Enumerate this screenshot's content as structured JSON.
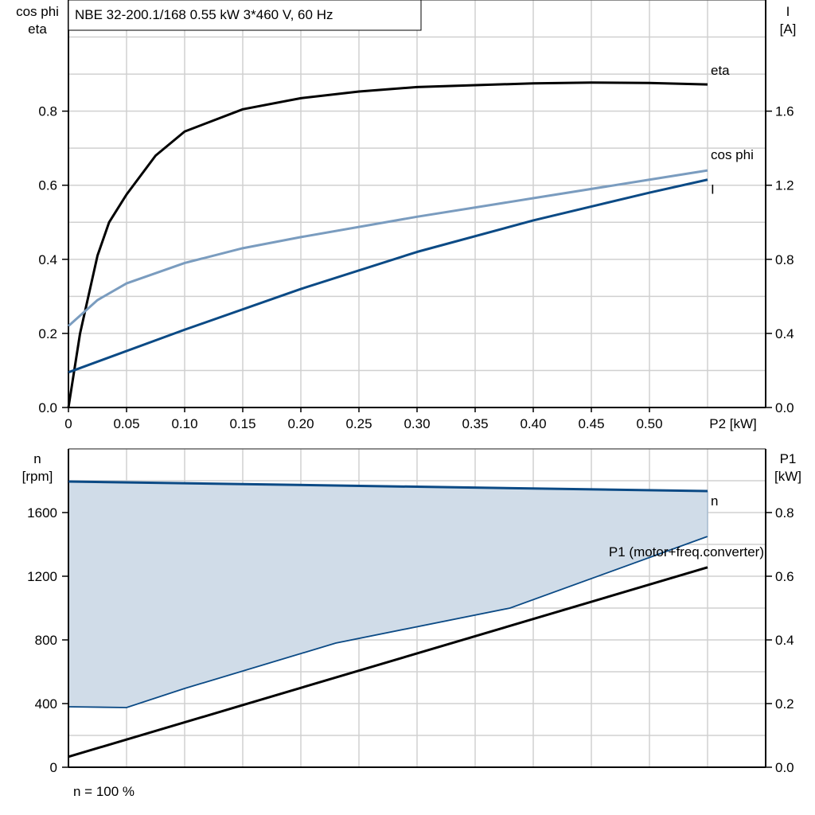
{
  "chart_data": [
    {
      "type": "line",
      "title": "NBE 32-200.1/168   0.55 kW   3*460 V, 60 Hz",
      "xlabel": "P2 [kW]",
      "ylabel": [
        "cos phi",
        "eta"
      ],
      "ylabel_right": [
        "I",
        "[A]"
      ],
      "xlim": [
        0,
        0.6
      ],
      "ylim": [
        0,
        1.1
      ],
      "ylim_right": [
        0,
        2.2
      ],
      "x_ticks": [
        "0",
        "0.05",
        "0.10",
        "0.15",
        "0.20",
        "0.25",
        "0.30",
        "0.35",
        "0.40",
        "0.45",
        "0.50"
      ],
      "y_ticks": [
        "0.0",
        "0.2",
        "0.4",
        "0.6",
        "0.8"
      ],
      "y_ticks_right": [
        "0.0",
        "0.4",
        "0.8",
        "1.2",
        "1.6"
      ],
      "grid": true,
      "series": [
        {
          "name": "eta",
          "axis": "left",
          "color": "#000000",
          "x": [
            0,
            0.01,
            0.025,
            0.035,
            0.05,
            0.075,
            0.1,
            0.15,
            0.2,
            0.25,
            0.3,
            0.4,
            0.45,
            0.5,
            0.55
          ],
          "y": [
            0,
            0.2,
            0.41,
            0.5,
            0.575,
            0.68,
            0.745,
            0.805,
            0.835,
            0.853,
            0.865,
            0.875,
            0.877,
            0.876,
            0.872
          ]
        },
        {
          "name": "cos phi",
          "axis": "left",
          "color": "#7a9cbf",
          "x": [
            0,
            0.025,
            0.05,
            0.1,
            0.15,
            0.2,
            0.3,
            0.4,
            0.5,
            0.55
          ],
          "y": [
            0.22,
            0.29,
            0.335,
            0.39,
            0.43,
            0.46,
            0.515,
            0.565,
            0.615,
            0.64
          ]
        },
        {
          "name": "I",
          "axis": "right",
          "color": "#0b4a85",
          "x": [
            0,
            0.1,
            0.2,
            0.3,
            0.4,
            0.5,
            0.55
          ],
          "y": [
            0.19,
            0.42,
            0.64,
            0.84,
            1.01,
            1.16,
            1.23
          ]
        }
      ]
    },
    {
      "type": "line",
      "ylabel": [
        "n",
        "[rpm]"
      ],
      "ylabel_right": [
        "P1",
        "[kW]"
      ],
      "xlim": [
        0,
        0.6
      ],
      "ylim": [
        0,
        2000
      ],
      "ylim_right": [
        0,
        1.0
      ],
      "y_ticks": [
        "0",
        "400",
        "800",
        "1200",
        "1600"
      ],
      "y_ticks_right": [
        "0.0",
        "0.2",
        "0.4",
        "0.6",
        "0.8"
      ],
      "grid": true,
      "footnote": "n = 100 %",
      "area": {
        "color": "#d0dce8",
        "upper_x": [
          0,
          0.55
        ],
        "upper_y": [
          1795,
          1735
        ],
        "lower_x": [
          0,
          0.05,
          0.1,
          0.23,
          0.38,
          0.55
        ],
        "lower_y": [
          380,
          375,
          495,
          780,
          1000,
          1450
        ]
      },
      "series": [
        {
          "name": "n",
          "axis": "left",
          "color": "#0b4a85",
          "x": [
            0,
            0.55
          ],
          "y": [
            1795,
            1735
          ]
        },
        {
          "name": "P1 (motor+freq.converter)",
          "axis": "right",
          "color": "#000000",
          "x": [
            0,
            0.55
          ],
          "y": [
            0.033,
            0.628
          ]
        }
      ]
    }
  ]
}
